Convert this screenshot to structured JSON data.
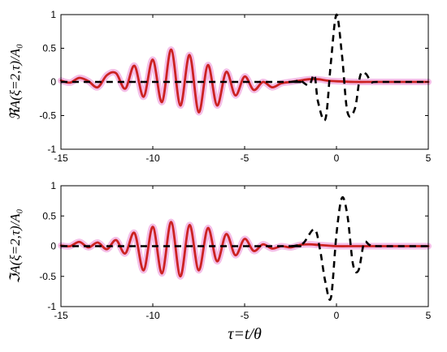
{
  "chart_data": [
    {
      "type": "line",
      "ylabel": "ℜA(ξ=2,τ)/A₀",
      "xlabel": "",
      "xlim": [
        -15,
        5
      ],
      "ylim": [
        -1,
        1
      ],
      "xticks": [
        -15,
        -10,
        -5,
        0,
        5
      ],
      "yticks": [
        -1,
        -0.5,
        0,
        0.5,
        1
      ],
      "x_tick_labels": [
        "-15",
        "-10",
        "-5",
        "0",
        "5"
      ],
      "y_tick_labels": [
        "-1",
        "-0.5",
        "0",
        "0.5",
        "1"
      ],
      "grid": false,
      "series": [
        {
          "style": "solid",
          "color": "#cc2222",
          "halo_color": "#f2b3e3",
          "x": [
            -15,
            -14.5,
            -14,
            -13.5,
            -13,
            -12.5,
            -12,
            -11.5,
            -11,
            -10.5,
            -10,
            -9.5,
            -9,
            -8.5,
            -8,
            -7.5,
            -7,
            -6.5,
            -6,
            -5.5,
            -5,
            -4.5,
            -4,
            -3.5,
            -3,
            -2.5,
            -2,
            -1.5,
            -1,
            -0.5,
            0,
            1,
            2,
            3,
            4,
            5
          ],
          "values": [
            0.02,
            -0.01,
            0.06,
            0.01,
            -0.08,
            0.1,
            0.13,
            -0.1,
            0.24,
            -0.22,
            0.33,
            -0.3,
            0.48,
            -0.35,
            0.4,
            -0.45,
            0.25,
            -0.35,
            0.15,
            -0.2,
            0.08,
            -0.12,
            0.0,
            -0.08,
            -0.02,
            0.0,
            0.02,
            0.04,
            0.04,
            0.02,
            0.01,
            0.0,
            0.0,
            0.0,
            0.0,
            0.0
          ]
        },
        {
          "style": "dashed",
          "color": "#000000",
          "x": [
            -15,
            -3,
            -2.5,
            -2.2,
            -2.0,
            -1.5,
            -1.2,
            -1.0,
            -0.6,
            -0.3,
            0,
            0.3,
            0.6,
            1.0,
            1.3,
            1.6,
            1.9,
            2.3,
            5
          ],
          "values": [
            0,
            0,
            0,
            0.01,
            0.03,
            -0.05,
            0.1,
            -0.3,
            -0.55,
            0.3,
            1.0,
            0.4,
            -0.45,
            -0.4,
            0.1,
            0.12,
            0.0,
            0.0,
            0.0
          ]
        }
      ]
    },
    {
      "type": "line",
      "ylabel": "ℑA(ξ=2,τ)/A₀",
      "xlabel": "τ=t/θ",
      "xlim": [
        -15,
        5
      ],
      "ylim": [
        -1,
        1
      ],
      "xticks": [
        -15,
        -10,
        -5,
        0,
        5
      ],
      "yticks": [
        -1,
        -0.5,
        0,
        0.5,
        1
      ],
      "x_tick_labels": [
        "-15",
        "-10",
        "-5",
        "0",
        "5"
      ],
      "y_tick_labels": [
        "-1",
        "-0.5",
        "0",
        "0.5",
        "1"
      ],
      "grid": false,
      "series": [
        {
          "style": "solid",
          "color": "#cc2222",
          "halo_color": "#f2b3e3",
          "x": [
            -15,
            -14.5,
            -14,
            -13.5,
            -13,
            -12.5,
            -12,
            -11.5,
            -11,
            -10.5,
            -10,
            -9.5,
            -9,
            -8.5,
            -8,
            -7.5,
            -7,
            -6.5,
            -6,
            -5.5,
            -5,
            -4.5,
            -4,
            -3.5,
            -3,
            -2.5,
            -2,
            -1.5,
            -1,
            -0.5,
            0,
            1,
            2,
            3,
            4,
            5
          ],
          "values": [
            0.01,
            0.0,
            0.07,
            -0.02,
            0.06,
            -0.05,
            0.1,
            -0.12,
            0.22,
            -0.4,
            0.32,
            -0.45,
            0.4,
            -0.5,
            0.35,
            -0.4,
            0.3,
            -0.25,
            0.2,
            -0.15,
            0.12,
            -0.08,
            0.03,
            -0.04,
            0.0,
            -0.02,
            0.02,
            0.03,
            0.02,
            0.01,
            0.0,
            0.0,
            0.0,
            0.0,
            0.0,
            0.0
          ]
        },
        {
          "style": "dashed",
          "color": "#000000",
          "x": [
            -15,
            -3,
            -2.5,
            -2.2,
            -1.8,
            -1.2,
            -0.9,
            -0.6,
            -0.3,
            0.0,
            0.3,
            0.6,
            0.9,
            1.2,
            1.5,
            1.8,
            2.2,
            5
          ],
          "values": [
            0,
            0,
            0,
            0.01,
            0.05,
            0.28,
            -0.05,
            -0.6,
            -0.85,
            0.2,
            0.8,
            0.5,
            -0.3,
            -0.4,
            0.05,
            0.02,
            0.0,
            0.0
          ]
        }
      ]
    }
  ]
}
